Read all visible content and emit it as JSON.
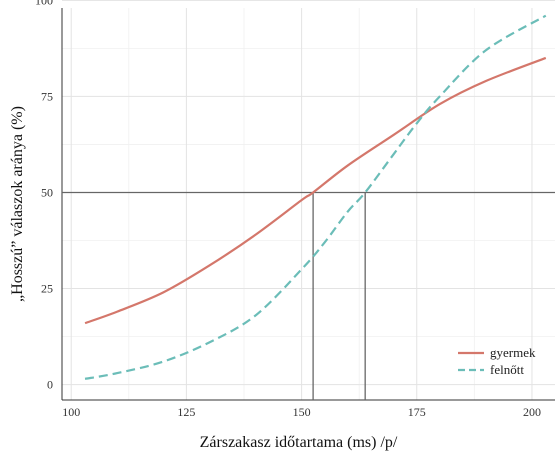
{
  "chart_data": {
    "type": "line",
    "title": "",
    "xlabel": "Zárszakasz időtartama (ms) /p/",
    "ylabel": "„Hosszú” válaszok aránya (%)",
    "xlim": [
      98,
      205
    ],
    "ylim": [
      -4,
      98
    ],
    "x_ticks": [
      100,
      125,
      150,
      175,
      200
    ],
    "y_ticks": [
      0,
      25,
      50,
      75,
      100
    ],
    "x_tick_labels": [
      "100",
      "125",
      "150",
      "175",
      "200"
    ],
    "y_tick_labels": [
      "0",
      "25",
      "50",
      "75",
      "100"
    ],
    "grid": true,
    "legend_position": "bottom-right",
    "reference_line_y": 50,
    "crossover_x": [
      152.5,
      163.8
    ],
    "series": [
      {
        "name": "gyermek",
        "style": "solid",
        "color": "#d4776b",
        "x": [
          103,
          110,
          120,
          130,
          140,
          150,
          152.5,
          160,
          170,
          180,
          190,
          203
        ],
        "y": [
          16,
          19,
          24,
          31,
          39,
          48,
          50,
          57,
          65,
          73,
          79,
          85
        ]
      },
      {
        "name": "felnőtt",
        "style": "dashed",
        "color": "#6bbdb8",
        "x": [
          103,
          110,
          120,
          130,
          140,
          150,
          155,
          160,
          163.8,
          170,
          175,
          180,
          190,
          203
        ],
        "y": [
          1.5,
          3,
          6,
          11,
          18,
          30,
          37,
          45,
          50,
          60,
          68,
          75,
          87,
          96
        ]
      }
    ]
  }
}
